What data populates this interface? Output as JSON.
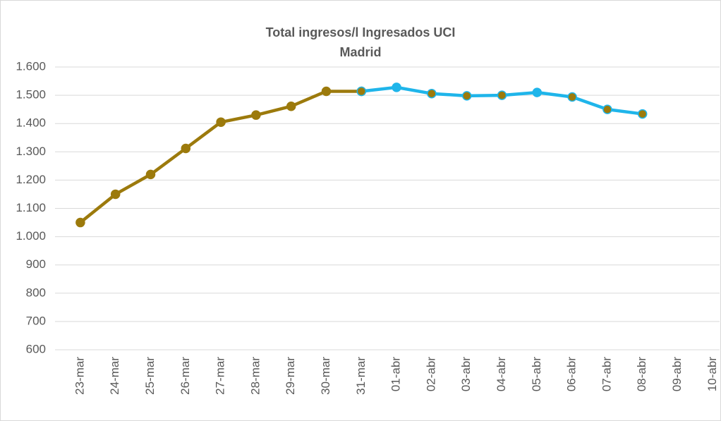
{
  "chart_data": {
    "type": "line",
    "title": [
      "Total ingresos/l Ingresados UCI",
      "Madrid"
    ],
    "categories": [
      "23-mar",
      "24-mar",
      "25-mar",
      "26-mar",
      "27-mar",
      "28-mar",
      "29-mar",
      "30-mar",
      "31-mar",
      "01-abr",
      "02-abr",
      "03-abr",
      "04-abr",
      "05-abr",
      "06-abr",
      "07-abr",
      "08-abr",
      "09-abr",
      "10-abr"
    ],
    "series": [
      {
        "color": "#9c7a0c",
        "marker_colors": [
          "#9c7a0c",
          "#9c7a0c",
          "#9c7a0c",
          "#9c7a0c",
          "#9c7a0c",
          "#9c7a0c",
          "#9c7a0c",
          "#9c7a0c",
          "#9c7a0c",
          "#9c7a0c",
          "#9c7a0c",
          "#9c7a0c",
          "#9c7a0c",
          "#9c7a0c",
          "#9c7a0c",
          "#9c7a0c",
          "#9c7a0c",
          "#9c7a0c",
          "#9c7a0c"
        ],
        "values": [
          1050,
          1150,
          1220,
          1312,
          1405,
          1430,
          1461,
          1514,
          1514,
          null,
          null,
          null,
          null,
          null,
          null,
          null,
          null,
          null,
          null
        ]
      },
      {
        "color": "#1fb5ea",
        "marker_colors": [
          "#9c7a0c",
          "#9c7a0c",
          "#9c7a0c",
          "#9c7a0c",
          "#9c7a0c",
          "#9c7a0c",
          "#9c7a0c",
          "#9c7a0c",
          "#9c7a0c",
          "#1fb5ea",
          "#9c7a0c",
          "#9c7a0c",
          "#9c7a0c",
          "#1fb5ea",
          "#9c7a0c",
          "#9c7a0c",
          "#9c7a0c",
          "#9c7a0c",
          "#9c7a0c"
        ],
        "values": [
          null,
          null,
          null,
          null,
          null,
          null,
          null,
          null,
          1514,
          1528,
          1506,
          1498,
          1500,
          1510,
          1494,
          1450,
          1434,
          null,
          null
        ]
      }
    ],
    "ylim": [
      600,
      1600
    ],
    "yticks": [
      {
        "value": 600,
        "label": "600"
      },
      {
        "value": 700,
        "label": "700"
      },
      {
        "value": 800,
        "label": "800"
      },
      {
        "value": 900,
        "label": "900"
      },
      {
        "value": 1000,
        "label": "1.000"
      },
      {
        "value": 1100,
        "label": "1.100"
      },
      {
        "value": 1200,
        "label": "1.200"
      },
      {
        "value": 1300,
        "label": "1.300"
      },
      {
        "value": 1400,
        "label": "1.400"
      },
      {
        "value": 1500,
        "label": "1.500"
      },
      {
        "value": 1600,
        "label": "1.600"
      }
    ],
    "grid": true
  }
}
